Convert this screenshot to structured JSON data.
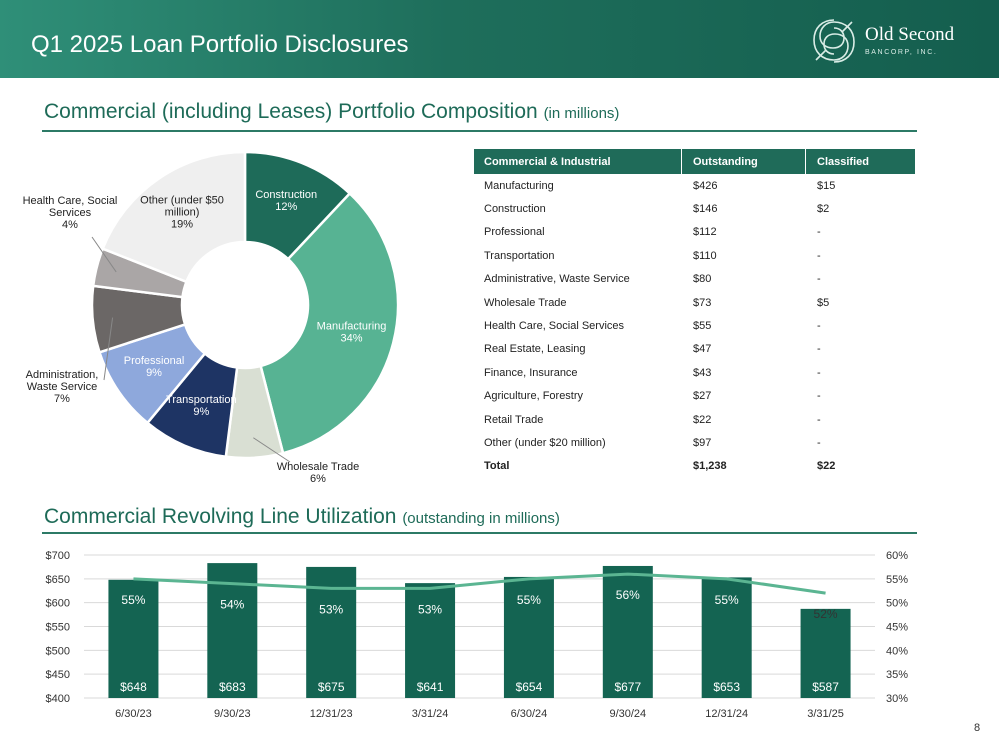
{
  "header": {
    "title": "Q1 2025 Loan Portfolio Disclosures",
    "logo_name": "Old Second",
    "logo_sub": "BANCORP, INC."
  },
  "section1": {
    "title": "Commercial (including Leases) Portfolio Composition",
    "sub": "(in millions)"
  },
  "section2": {
    "title": "Commercial Revolving Line Utilization",
    "sub": "(outstanding in millions)"
  },
  "table": {
    "headers": [
      "Commercial & Industrial",
      "Outstanding",
      "Classified"
    ],
    "rows": [
      [
        "Manufacturing",
        "$426",
        "$15"
      ],
      [
        "Construction",
        "$146",
        "$2"
      ],
      [
        "Professional",
        "$112",
        "-"
      ],
      [
        "Transportation",
        "$110",
        "-"
      ],
      [
        "Administrative, Waste Service",
        "$80",
        "-"
      ],
      [
        "Wholesale Trade",
        "$73",
        "$5"
      ],
      [
        "Health Care, Social Services",
        "$55",
        "-"
      ],
      [
        "Real Estate, Leasing",
        "$47",
        "-"
      ],
      [
        "Finance, Insurance",
        "$43",
        "-"
      ],
      [
        "Agriculture, Forestry",
        "$27",
        "-"
      ],
      [
        "Retail Trade",
        "$22",
        "-"
      ],
      [
        "Other (under $20 million)",
        "$97",
        "-"
      ]
    ],
    "total": [
      "Total",
      "$1,238",
      "$22"
    ]
  },
  "page_number": "8",
  "chart_data": [
    {
      "type": "pie",
      "donut": true,
      "slices": [
        {
          "label": [
            "Construction",
            "12%"
          ],
          "value": 12,
          "color": "#1e6b59",
          "text_color": "#ffffff"
        },
        {
          "label": [
            "Manufacturing",
            "34%"
          ],
          "value": 34,
          "color": "#57b393",
          "text_color": "#ffffff"
        },
        {
          "label": [
            "Wholesale Trade",
            "6%"
          ],
          "value": 6,
          "color": "#d9dfd3",
          "text_color": "#222222"
        },
        {
          "label": [
            "Transportation",
            "9%"
          ],
          "value": 9,
          "color": "#1e3464",
          "text_color": "#ffffff"
        },
        {
          "label": [
            "Professional",
            "9%"
          ],
          "value": 9,
          "color": "#8ea8dc",
          "text_color": "#ffffff"
        },
        {
          "label": [
            "Administration,",
            "Waste Service",
            "7%"
          ],
          "value": 7,
          "color": "#6b6766",
          "text_color": "#222222"
        },
        {
          "label": [
            "Health Care, Social",
            "Services",
            "4%"
          ],
          "value": 4,
          "color": "#aaa6a6",
          "text_color": "#222222"
        },
        {
          "label": [
            "Other (under $50",
            "million)",
            "19%"
          ],
          "value": 19,
          "color": "#efefef",
          "text_color": "#222222"
        }
      ]
    },
    {
      "type": "bar",
      "categories": [
        "6/30/23",
        "9/30/23",
        "12/31/23",
        "3/31/24",
        "6/30/24",
        "9/30/24",
        "12/31/24",
        "3/31/25"
      ],
      "series": [
        {
          "values": [
            648,
            683,
            675,
            641,
            654,
            677,
            653,
            587
          ],
          "value_labels": [
            "$648",
            "$683",
            "$675",
            "$641",
            "$654",
            "$677",
            "$653",
            "$587"
          ],
          "color": "#146452"
        },
        {
          "type": "line",
          "axis": "right",
          "values": [
            55,
            54,
            53,
            53,
            55,
            56,
            55,
            52
          ],
          "value_labels": [
            "55%",
            "54%",
            "53%",
            "53%",
            "55%",
            "56%",
            "55%",
            "52%"
          ],
          "color": "#5bb592"
        }
      ],
      "y_left": {
        "min": 400,
        "max": 700,
        "ticks": [
          "$400",
          "$450",
          "$500",
          "$550",
          "$600",
          "$650",
          "$700"
        ]
      },
      "y_right": {
        "min": 30,
        "max": 60,
        "ticks": [
          "30%",
          "35%",
          "40%",
          "45%",
          "50%",
          "55%",
          "60%"
        ]
      },
      "grid": true
    }
  ]
}
